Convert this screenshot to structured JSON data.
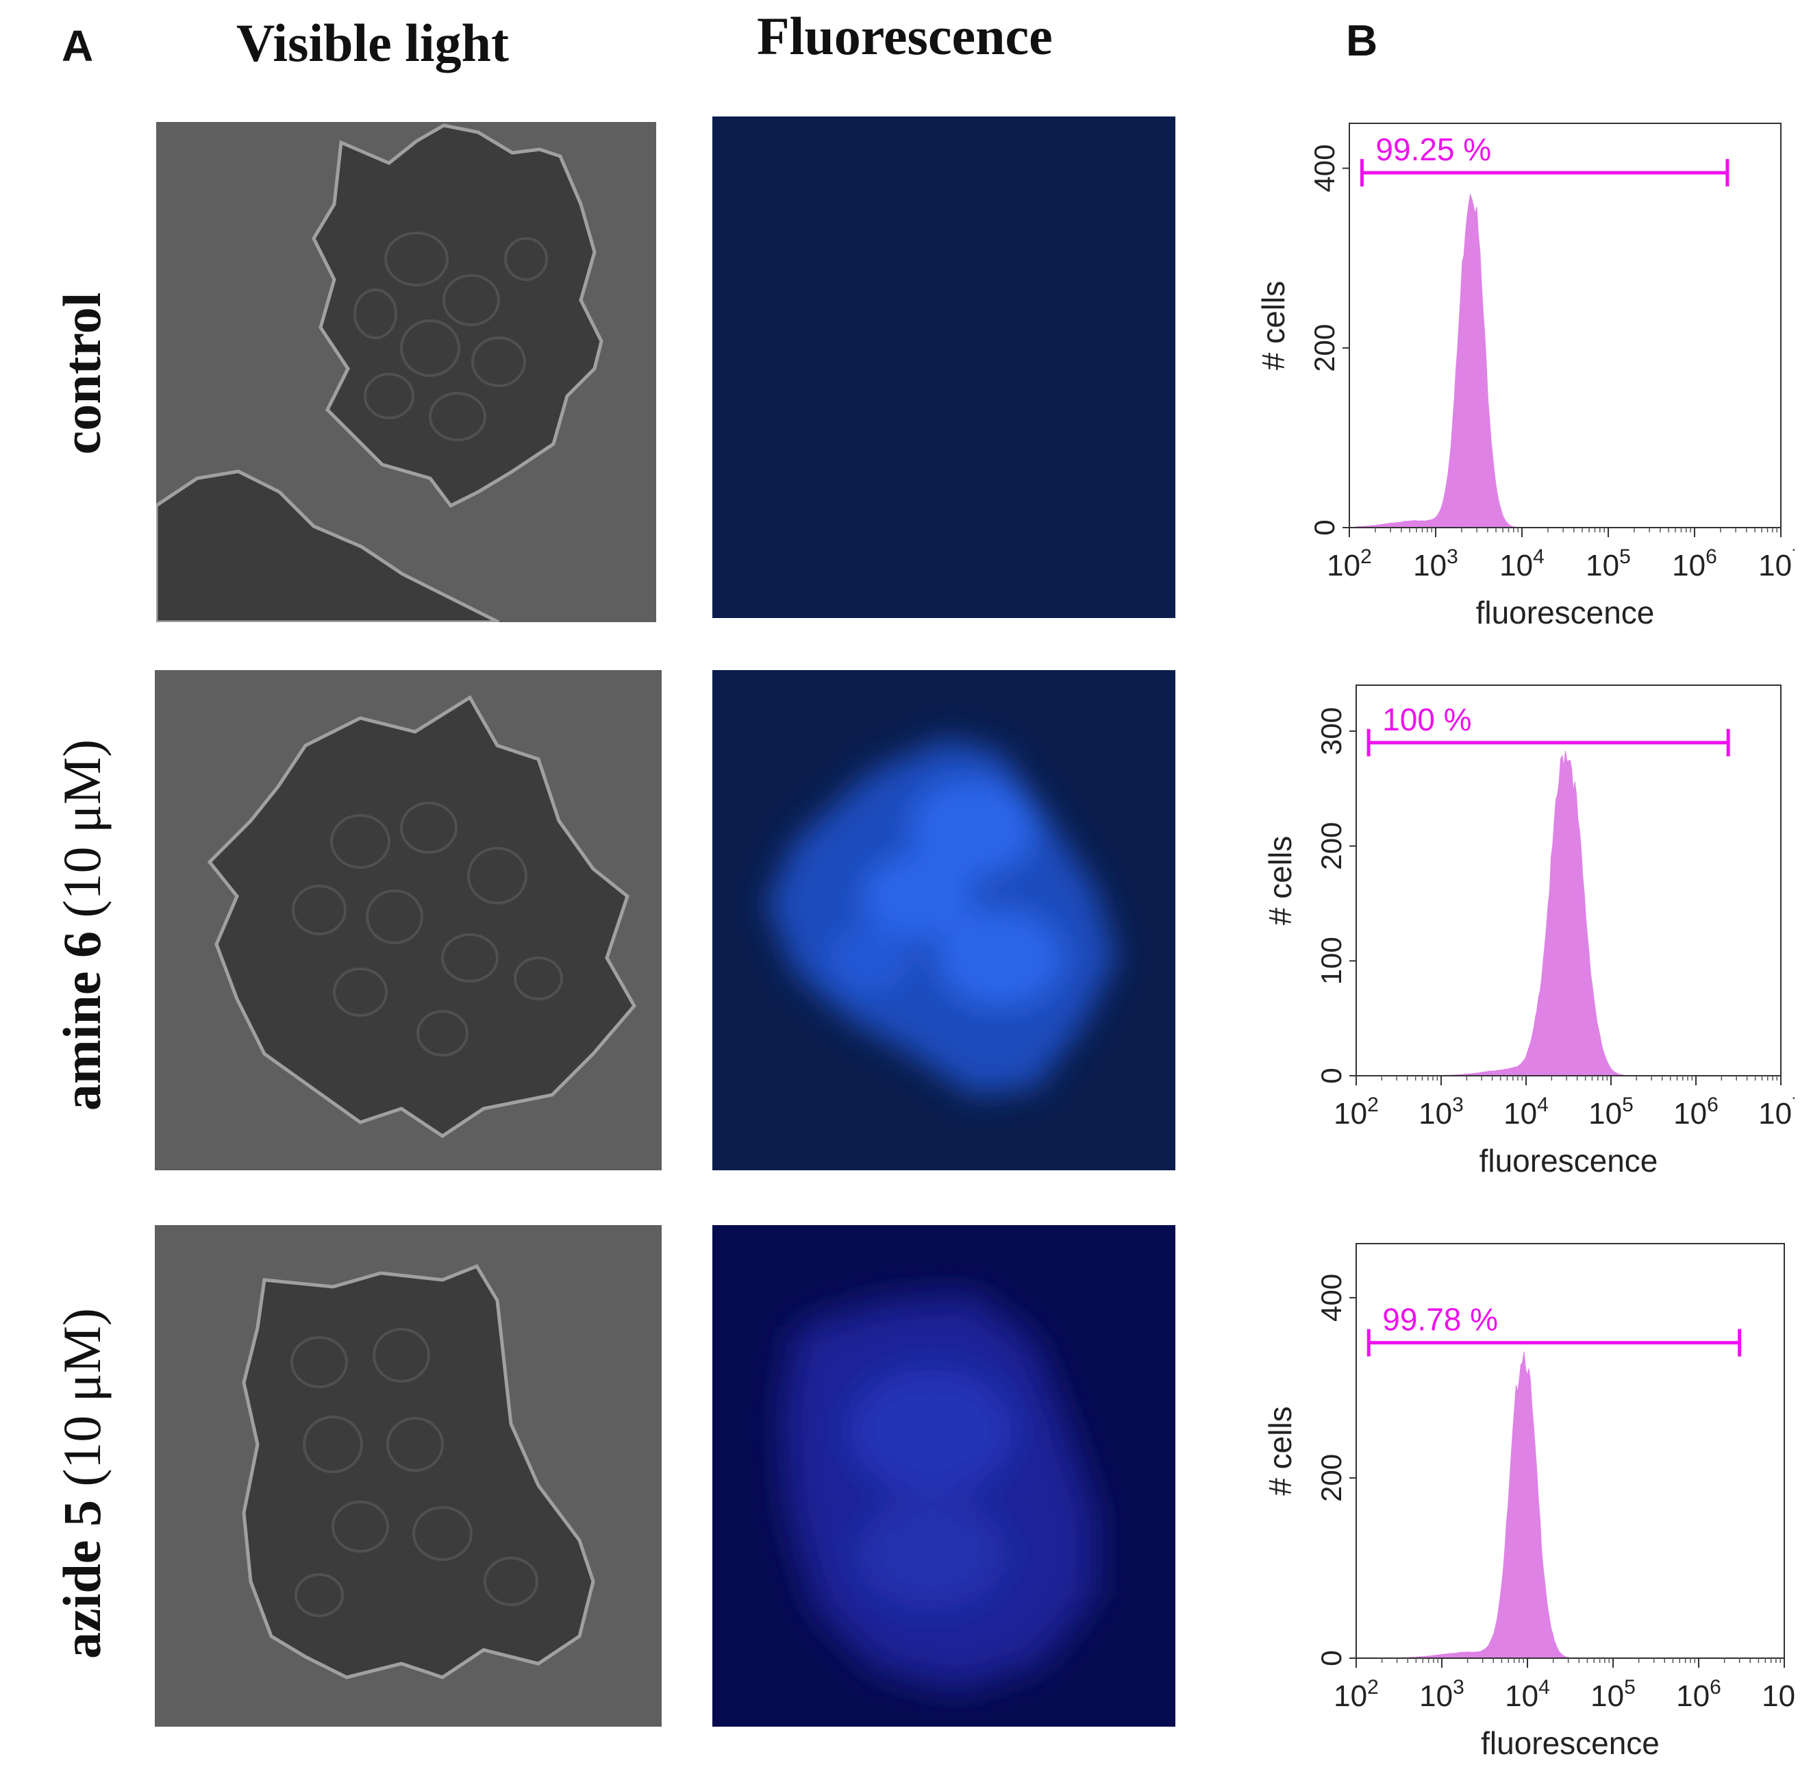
{
  "panel_labels": {
    "a": "A",
    "b": "B"
  },
  "column_titles": {
    "visible": "Visible light",
    "fluorescence": "Fluorescence"
  },
  "rows": [
    {
      "label_bold": "control",
      "label_plain": ""
    },
    {
      "label_bold": "amine 6",
      "label_plain": " (10 μM)"
    },
    {
      "label_bold": "azide 5",
      "label_plain": " (10 μM)"
    }
  ],
  "colors": {
    "histogram_fill": "#de82e6",
    "gate": "#ee11ee",
    "fluor_bg": "#0a1d4d",
    "fluor_signal_amine": "#1f5ee6",
    "fluor_signal_azide": "#2432b5"
  },
  "chart_data": [
    {
      "type": "area",
      "xlabel": "fluorescence",
      "ylabel": "# cells",
      "x_scale": "log",
      "xlim": [
        100,
        10000000
      ],
      "ylim": [
        0,
        450
      ],
      "y_ticks": [
        0,
        200,
        400
      ],
      "gate": {
        "label": "99.25 %",
        "x_start": 140,
        "x_end": 2400000,
        "y": 395
      },
      "peak": {
        "x": 2600,
        "y": 380,
        "sigma_log10": 0.14
      }
    },
    {
      "type": "area",
      "xlabel": "fluorescence",
      "ylabel": "# cells",
      "x_scale": "log",
      "xlim": [
        100,
        10000000
      ],
      "ylim": [
        0,
        340
      ],
      "y_ticks": [
        0,
        100,
        200,
        300
      ],
      "gate": {
        "label": "100 %",
        "x_start": 140,
        "x_end": 2400000,
        "y": 290
      },
      "peak": {
        "x": 30000,
        "y": 283,
        "sigma_log10": 0.19
      }
    },
    {
      "type": "area",
      "xlabel": "fluorescence",
      "ylabel": "# cells",
      "x_scale": "log",
      "xlim": [
        100,
        10000000
      ],
      "ylim": [
        0,
        460
      ],
      "y_ticks": [
        0,
        200,
        400
      ],
      "gate": {
        "label": "99.78 %",
        "x_start": 140,
        "x_end": 3000000,
        "y": 350
      },
      "peak": {
        "x": 9000,
        "y": 340,
        "sigma_log10": 0.15
      }
    }
  ]
}
